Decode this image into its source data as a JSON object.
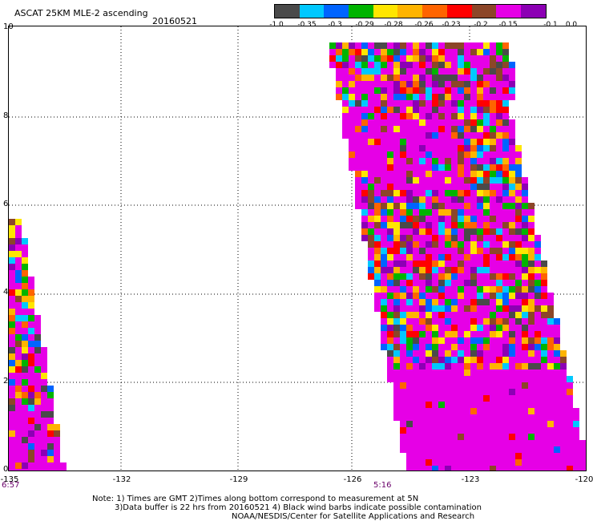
{
  "header": {
    "title": "ASCAT 25KM MLE-2 ascending",
    "date": "20160521"
  },
  "colorbar": {
    "colors": [
      "#4a4a4a",
      "#00c8ff",
      "#0064ff",
      "#00b400",
      "#ffe600",
      "#ffb400",
      "#ff6400",
      "#ff0000",
      "#8c4628",
      "#e600e6",
      "#8c00b4"
    ],
    "labels": [
      "-1.0",
      "-0.35",
      "-0.3",
      "-0.29",
      "-0.28",
      "-0.26",
      "-0.23",
      "-0.2",
      "-0.15",
      "-0.1",
      "0.0"
    ]
  },
  "axes": {
    "y_ticks": [
      "0",
      "2",
      "4",
      "6",
      "8",
      "10"
    ],
    "x_ticks": [
      "-135",
      "-132",
      "-129",
      "-126",
      "-123",
      "-120"
    ]
  },
  "time_labels": {
    "left": "6:57",
    "center": "5:16"
  },
  "notes": {
    "line1": "Note: 1) Times are GMT 2)Times along bottom correspond to measurement at 5N",
    "line2": "3)Data buffer is 22 hrs from 20160521 4) Black wind barbs indicate possible contamination",
    "line3": "NOAA/NESDIS/Center for Satellite Applications and Research"
  }
}
